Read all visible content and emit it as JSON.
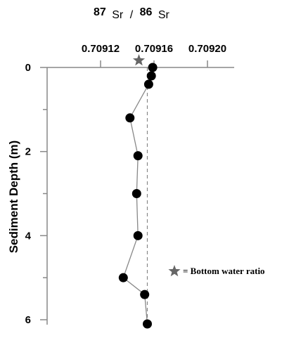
{
  "chart_data": {
    "type": "scatter",
    "title_parts": {
      "mass_top": "87",
      "element_top": "Sr",
      "slash": "/",
      "mass_bottom": "86",
      "element_bottom": "Sr"
    },
    "xlabel": "⁸⁷Sr / ⁸⁶Sr",
    "ylabel": "Sediment Depth (m)",
    "x_ticks": [
      0.70912,
      0.70916,
      0.7092
    ],
    "x_tick_labels": [
      "0.70912",
      "0.70916",
      "0.70920"
    ],
    "y_ticks": [
      0,
      2,
      4,
      6
    ],
    "y_tick_labels": [
      "0",
      "2",
      "4",
      "6"
    ],
    "xlim": [
      0.70908,
      0.70922
    ],
    "ylim": [
      0,
      6.2
    ],
    "y_inverted": true,
    "series": [
      {
        "marker": "circle",
        "connected": true,
        "color": "#000000",
        "line_color": "#777777",
        "points": [
          {
            "x": 0.709159,
            "y": 0.0
          },
          {
            "x": 0.709158,
            "y": 0.2
          },
          {
            "x": 0.709156,
            "y": 0.4
          },
          {
            "x": 0.709142,
            "y": 1.2
          },
          {
            "x": 0.709148,
            "y": 2.1
          },
          {
            "x": 0.709147,
            "y": 3.0
          },
          {
            "x": 0.709148,
            "y": 4.0
          },
          {
            "x": 0.709137,
            "y": 5.0
          },
          {
            "x": 0.709153,
            "y": 5.4
          },
          {
            "x": 0.709155,
            "y": 6.1
          }
        ]
      }
    ],
    "bottom_water": {
      "x": 0.709155,
      "marker": "star",
      "color": "#666666",
      "reference_line": "dashed"
    },
    "legend": {
      "label": "= Bottom water ratio",
      "placement": "right"
    },
    "grid": false
  }
}
